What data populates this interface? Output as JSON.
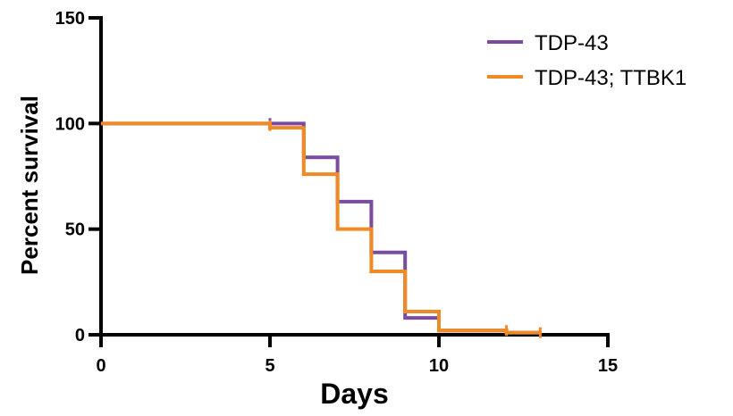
{
  "chart_data": {
    "type": "line",
    "step": true,
    "title": "",
    "xlabel": "Days",
    "ylabel": "Percent survival",
    "xlim": [
      0,
      15
    ],
    "ylim": [
      0,
      150
    ],
    "xticks": [
      "0",
      "5",
      "10",
      "15"
    ],
    "yticks": [
      "0",
      "50",
      "100",
      "150"
    ],
    "grid": false,
    "legend_position": "top-right",
    "series": [
      {
        "name": "TDP-43",
        "color": "#7a4ba0",
        "points": [
          [
            0,
            100
          ],
          [
            5,
            100
          ],
          [
            6,
            100
          ],
          [
            6,
            84
          ],
          [
            7,
            84
          ],
          [
            7,
            63
          ],
          [
            8,
            63
          ],
          [
            8,
            39
          ],
          [
            9,
            39
          ],
          [
            9,
            8
          ],
          [
            10,
            8
          ],
          [
            10,
            2
          ],
          [
            12,
            2
          ],
          [
            12,
            1
          ],
          [
            13,
            1
          ]
        ],
        "censor_marks": [
          [
            5,
            100
          ]
        ]
      },
      {
        "name": "TDP-43; TTBK1",
        "color": "#f08a24",
        "points": [
          [
            0,
            100
          ],
          [
            5,
            100
          ],
          [
            5,
            98
          ],
          [
            6,
            98
          ],
          [
            6,
            76
          ],
          [
            7,
            76
          ],
          [
            7,
            50
          ],
          [
            8,
            50
          ],
          [
            8,
            30
          ],
          [
            9,
            30
          ],
          [
            9,
            11
          ],
          [
            10,
            11
          ],
          [
            10,
            2
          ],
          [
            12,
            2
          ],
          [
            12,
            1
          ],
          [
            13,
            1
          ]
        ],
        "censor_marks": [
          [
            5,
            99
          ],
          [
            12,
            2
          ],
          [
            13,
            1
          ]
        ]
      }
    ]
  }
}
